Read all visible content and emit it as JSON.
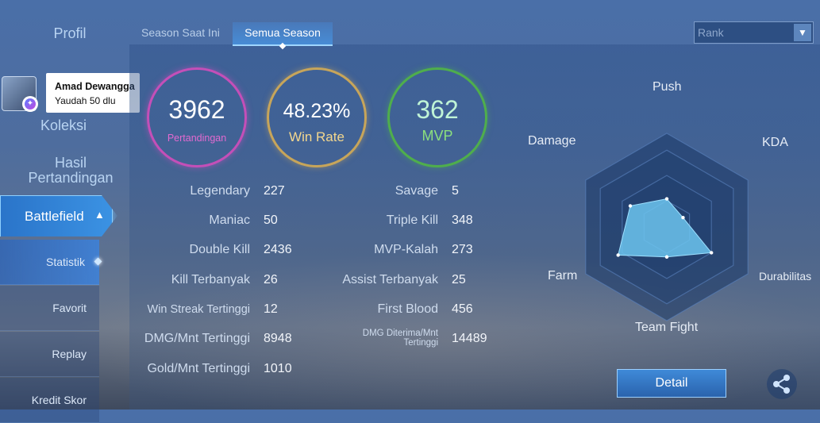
{
  "nav": {
    "profil": "Profil",
    "koleksi": "Koleksi",
    "hasil_line1": "Hasil",
    "hasil_line2": "Pertandingan",
    "battlefield": "Battlefield",
    "sub": [
      "Statistik",
      "Favorit",
      "Replay",
      "Kredit Skor"
    ]
  },
  "notification": {
    "name": "Amad Dewangga",
    "message": "Yaudah 50 dlu"
  },
  "tabs": {
    "current": "Season Saat Ini",
    "all": "Semua Season"
  },
  "filter": {
    "selected": "Rank"
  },
  "summary": {
    "matches": {
      "value": "3962",
      "label": "Pertandingan"
    },
    "win_rate": {
      "value": "48.23%",
      "label": "Win Rate"
    },
    "mvp": {
      "value": "362",
      "label": "MVP"
    }
  },
  "stats_left": [
    {
      "label": "Legendary",
      "value": "227"
    },
    {
      "label": "Maniac",
      "value": "50"
    },
    {
      "label": "Double Kill",
      "value": "2436"
    },
    {
      "label": "Kill Terbanyak",
      "value": "26"
    },
    {
      "label": "Win Streak Tertinggi",
      "value": "12"
    },
    {
      "label": "DMG/Mnt Tertinggi",
      "value": "8948"
    },
    {
      "label": "Gold/Mnt Tertinggi",
      "value": "1010"
    }
  ],
  "stats_right": [
    {
      "label": "Savage",
      "value": "5"
    },
    {
      "label": "Triple Kill",
      "value": "348"
    },
    {
      "label": "MVP-Kalah",
      "value": "273"
    },
    {
      "label": "Assist Terbanyak",
      "value": "25"
    },
    {
      "label": "First Blood",
      "value": "456"
    },
    {
      "label": "DMG Diterima/Mnt Tertinggi",
      "label_line1": "DMG Diterima/Mnt",
      "label_line2": "Tertinggi",
      "value": "14489"
    }
  ],
  "radar": {
    "axes": [
      "Push",
      "KDA",
      "Durabilitas",
      "Team Fight",
      "Farm",
      "Damage"
    ],
    "values": [
      0.3,
      0.2,
      0.55,
      0.32,
      0.6,
      0.45
    ],
    "fill": "#6cc4ee"
  },
  "detail_label": "Detail",
  "colors": {
    "matches": "#c44fb8",
    "win_rate": "#c7a55a",
    "mvp": "#4fae4c",
    "accent": "#3b92e3"
  }
}
